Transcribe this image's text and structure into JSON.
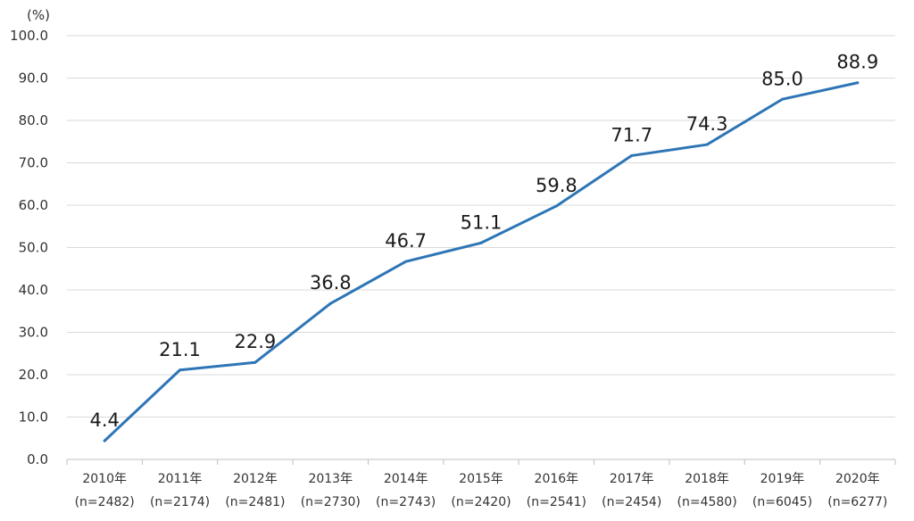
{
  "chart_data": {
    "type": "line",
    "title": "",
    "unit_label": "(%)",
    "xlabel": "",
    "ylabel": "",
    "ylim": [
      0,
      100
    ],
    "y_ticks": [
      "0.0",
      "10.0",
      "20.0",
      "30.0",
      "40.0",
      "50.0",
      "60.0",
      "70.0",
      "80.0",
      "90.0",
      "100.0"
    ],
    "grid": "horizontal",
    "legend": "none",
    "categories": [
      "2010年",
      "2011年",
      "2012年",
      "2013年",
      "2014年",
      "2015年",
      "2016年",
      "2017年",
      "2018年",
      "2019年",
      "2020年"
    ],
    "sample_sizes": [
      "(n=2482)",
      "(n=2174)",
      "(n=2481)",
      "(n=2730)",
      "(n=2743)",
      "(n=2420)",
      "(n=2541)",
      "(n=2454)",
      "(n=4580)",
      "(n=6045)",
      "(n=6277)"
    ],
    "series": [
      {
        "color": "#2e75b6",
        "values": [
          4.4,
          21.1,
          22.9,
          36.8,
          46.7,
          51.1,
          59.8,
          71.7,
          74.3,
          85.0,
          88.9
        ],
        "labels": [
          "4.4",
          "21.1",
          "22.9",
          "36.8",
          "46.7",
          "51.1",
          "59.8",
          "71.7",
          "74.3",
          "85.0",
          "88.9"
        ]
      }
    ]
  }
}
